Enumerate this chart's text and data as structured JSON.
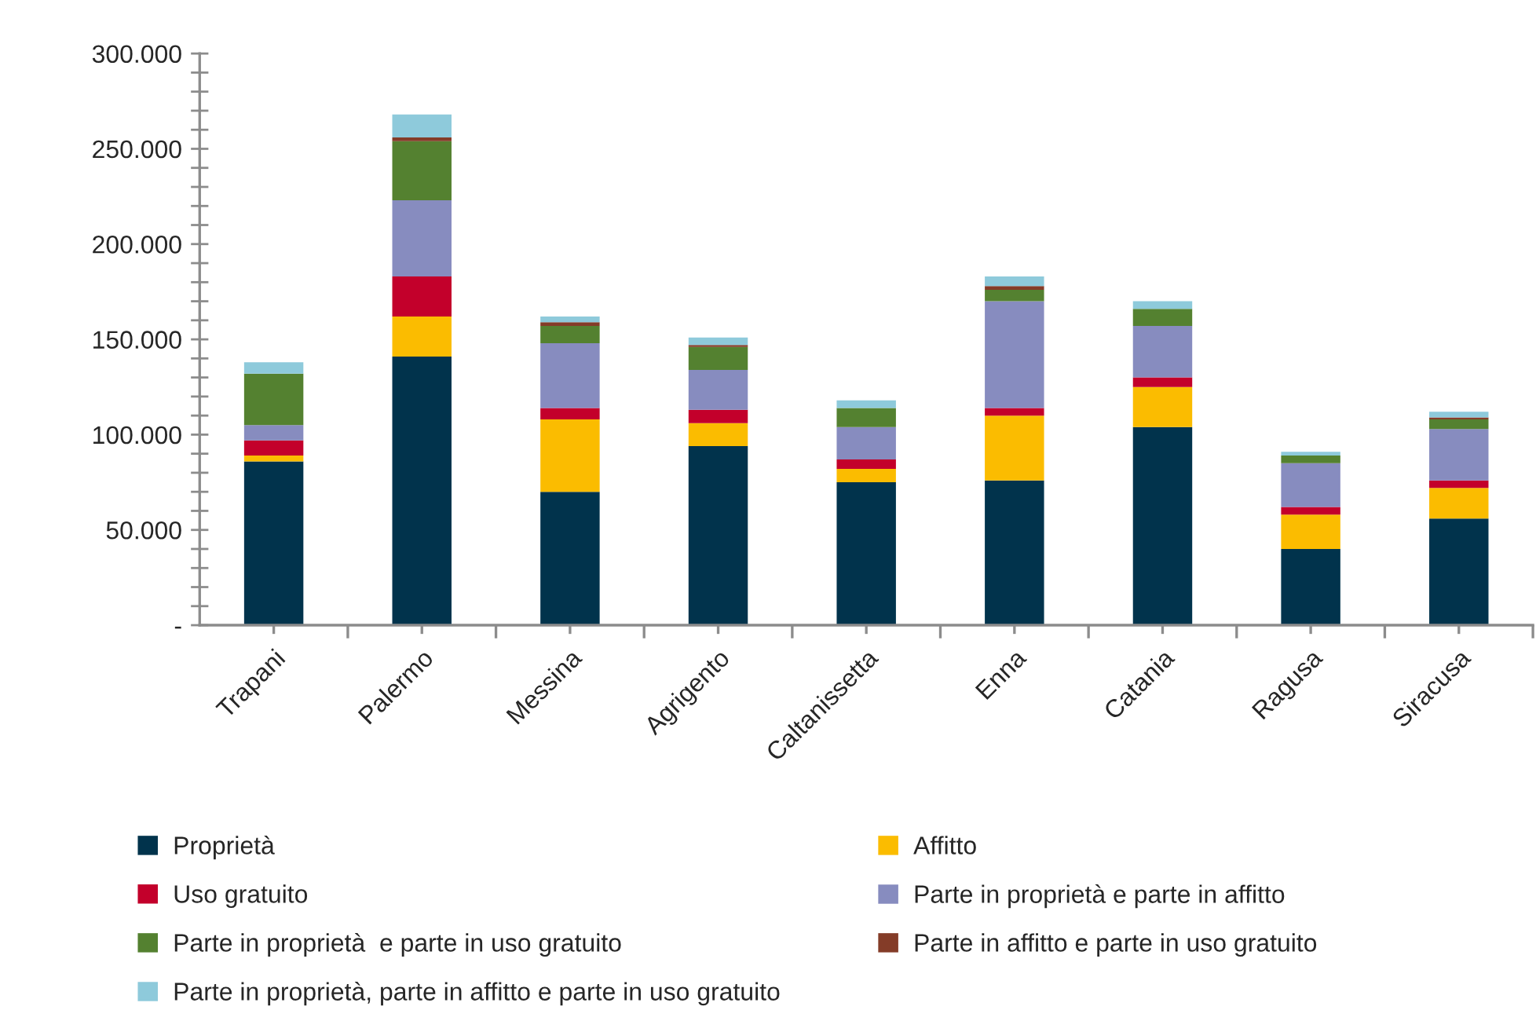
{
  "chart_data": {
    "type": "bar",
    "stacked": true,
    "categories": [
      "Trapani",
      "Palermo",
      "Messina",
      "Agrigento",
      "Caltanissetta",
      "Enna",
      "Catania",
      "Ragusa",
      "Siracusa"
    ],
    "series": [
      {
        "name": "Proprietà",
        "color": "#01334c",
        "values": [
          86000,
          141000,
          70000,
          94000,
          75000,
          76000,
          104000,
          40000,
          56000
        ]
      },
      {
        "name": "Affitto",
        "color": "#fbbc00",
        "values": [
          3000,
          21000,
          38000,
          12000,
          7000,
          34000,
          21000,
          18000,
          16000
        ]
      },
      {
        "name": "Uso gratuito",
        "color": "#c3002b",
        "values": [
          8000,
          21000,
          6000,
          7000,
          5000,
          4000,
          5000,
          4000,
          4000
        ]
      },
      {
        "name": "Parte in proprietà e parte in affitto",
        "color": "#878cbf",
        "values": [
          8000,
          40000,
          34000,
          21000,
          17000,
          56000,
          27000,
          23000,
          27000
        ]
      },
      {
        "name": "Parte in proprietà  e parte in uso gratuito",
        "color": "#548130",
        "values": [
          27000,
          31000,
          9000,
          12000,
          10000,
          6000,
          9000,
          4000,
          5000
        ]
      },
      {
        "name": "Parte in affitto e parte in uso gratuito",
        "color": "#843c28",
        "values": [
          0,
          2000,
          2000,
          1000,
          0,
          2000,
          0,
          0,
          1000
        ]
      },
      {
        "name": "Parte in proprietà, parte in affitto e parte in uso gratuito",
        "color": "#8ecadb",
        "values": [
          6000,
          12000,
          3000,
          4000,
          4000,
          5000,
          4000,
          2000,
          3000
        ]
      }
    ],
    "ylim": [
      0,
      300000
    ],
    "yticks": [
      {
        "value": 0,
        "label": "-"
      },
      {
        "value": 10000,
        "label": null
      },
      {
        "value": 20000,
        "label": null
      },
      {
        "value": 30000,
        "label": null
      },
      {
        "value": 40000,
        "label": null
      },
      {
        "value": 50000,
        "label": "50.000"
      },
      {
        "value": 60000,
        "label": null
      },
      {
        "value": 70000,
        "label": null
      },
      {
        "value": 80000,
        "label": null
      },
      {
        "value": 90000,
        "label": null
      },
      {
        "value": 100000,
        "label": "100.000"
      },
      {
        "value": 110000,
        "label": null
      },
      {
        "value": 120000,
        "label": null
      },
      {
        "value": 130000,
        "label": null
      },
      {
        "value": 140000,
        "label": null
      },
      {
        "value": 150000,
        "label": "150.000"
      },
      {
        "value": 160000,
        "label": null
      },
      {
        "value": 170000,
        "label": null
      },
      {
        "value": 180000,
        "label": null
      },
      {
        "value": 190000,
        "label": null
      },
      {
        "value": 200000,
        "label": "200.000"
      },
      {
        "value": 210000,
        "label": null
      },
      {
        "value": 220000,
        "label": null
      },
      {
        "value": 230000,
        "label": null
      },
      {
        "value": 240000,
        "label": null
      },
      {
        "value": 250000,
        "label": "250.000"
      },
      {
        "value": 260000,
        "label": null
      },
      {
        "value": 270000,
        "label": null
      },
      {
        "value": 280000,
        "label": null
      },
      {
        "value": 290000,
        "label": null
      },
      {
        "value": 300000,
        "label": "300.000"
      }
    ],
    "grid": false,
    "legend": "bottom"
  }
}
